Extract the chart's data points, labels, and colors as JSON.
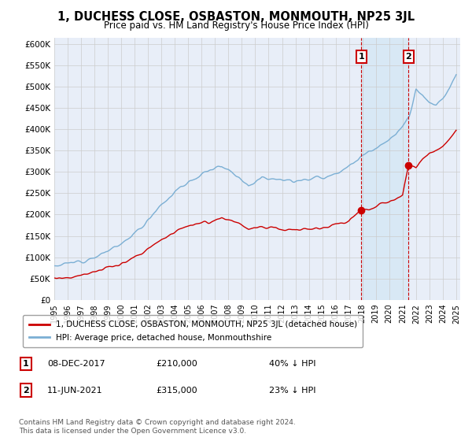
{
  "title": "1, DUCHESS CLOSE, OSBASTON, MONMOUTH, NP25 3JL",
  "subtitle": "Price paid vs. HM Land Registry's House Price Index (HPI)",
  "ylabel_values": [
    0,
    50000,
    100000,
    150000,
    200000,
    250000,
    300000,
    350000,
    400000,
    450000,
    500000,
    550000,
    600000
  ],
  "sale1_date": "08-DEC-2017",
  "sale1_price": 210000,
  "sale1_label": "40% ↓ HPI",
  "sale2_date": "11-JUN-2021",
  "sale2_price": 315000,
  "sale2_label": "23% ↓ HPI",
  "sale1_x": 2017.92,
  "sale2_x": 2021.44,
  "hpi_color": "#7bafd4",
  "price_color": "#cc0000",
  "vline_color": "#cc0000",
  "shade_color": "#d8e8f5",
  "background_color": "#e8eef8",
  "legend_label1": "1, DUCHESS CLOSE, OSBASTON, MONMOUTH, NP25 3JL (detached house)",
  "legend_label2": "HPI: Average price, detached house, Monmouthshire",
  "footnote": "Contains HM Land Registry data © Crown copyright and database right 2024.\nThis data is licensed under the Open Government Licence v3.0."
}
